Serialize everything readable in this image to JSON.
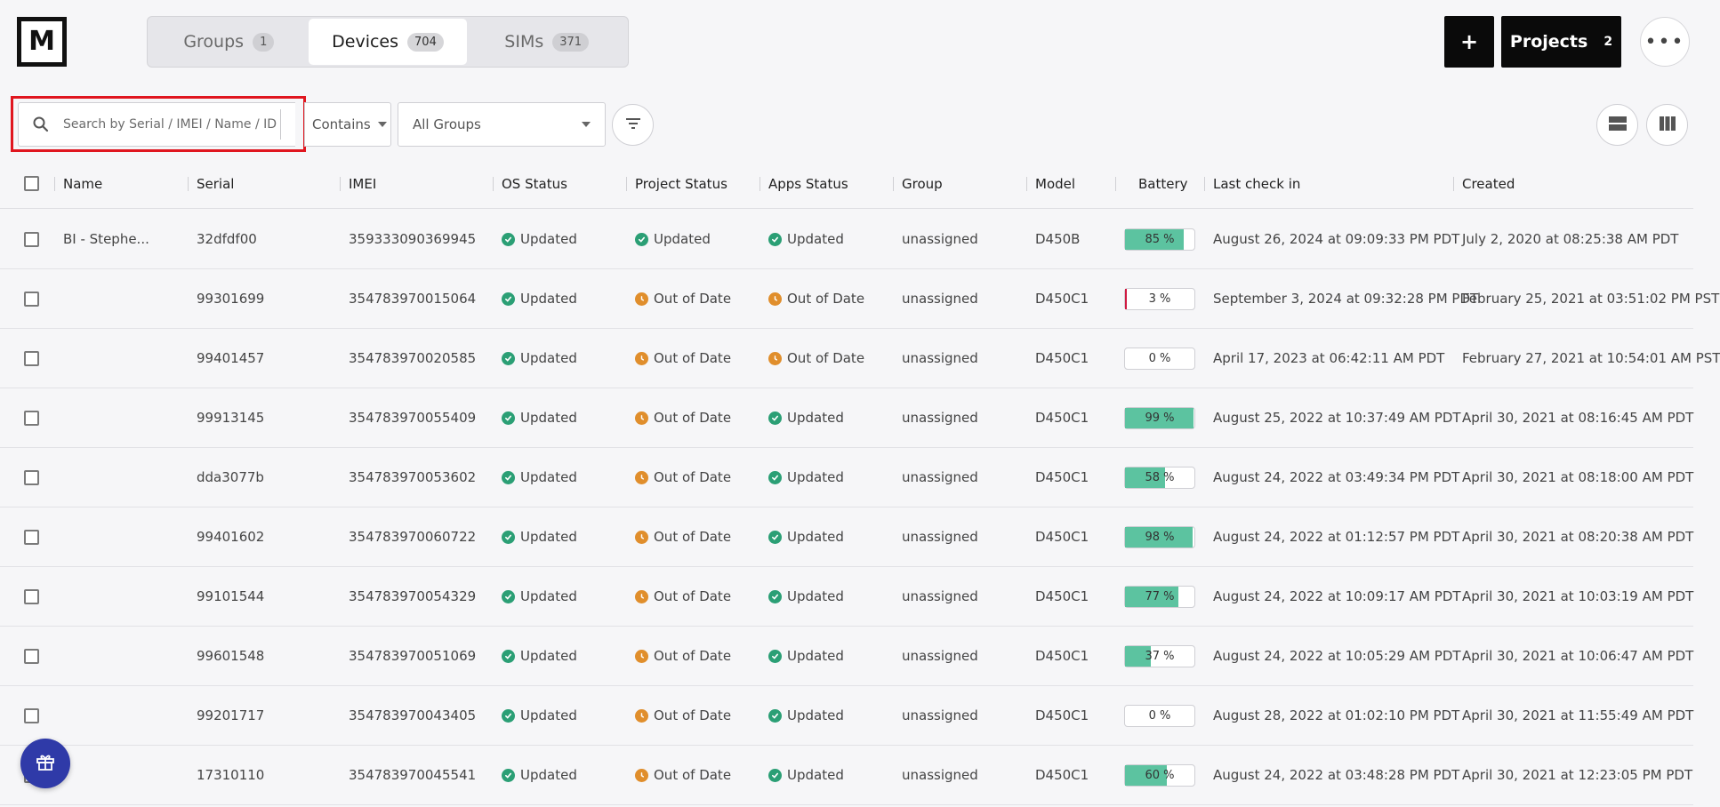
{
  "logo": {
    "letter": "M"
  },
  "tabs": [
    {
      "label": "Groups",
      "count": "1",
      "active": false
    },
    {
      "label": "Devices",
      "count": "704",
      "active": true
    },
    {
      "label": "SIMs",
      "count": "371",
      "active": false
    }
  ],
  "header": {
    "add_label": "+",
    "projects_label": "Projects",
    "projects_count": "2",
    "more_label": "•••"
  },
  "toolbar": {
    "search_placeholder": "Search by Serial / IMEI / Name / ID",
    "match_mode": "Contains",
    "group_filter": "All Groups"
  },
  "table": {
    "columns": {
      "name": "Name",
      "serial": "Serial",
      "imei": "IMEI",
      "os_status": "OS Status",
      "project_status": "Project Status",
      "apps_status": "Apps Status",
      "group": "Group",
      "model": "Model",
      "battery": "Battery",
      "last_check_in": "Last check in",
      "created": "Created"
    },
    "rows": [
      {
        "name": "BI - Stephe...",
        "serial": "32dfdf00",
        "imei": "359333090369945",
        "os": "Updated",
        "project": "Updated",
        "apps": "Updated",
        "group": "unassigned",
        "model": "D450B",
        "battery": 85,
        "battery_label": "85 %",
        "last_check_in": "August 26, 2024 at 09:09:33 PM PDT",
        "created": "July 2, 2020 at 08:25:38 AM PDT"
      },
      {
        "name": "",
        "serial": "99301699",
        "imei": "354783970015064",
        "os": "Updated",
        "project": "Out of Date",
        "apps": "Out of Date",
        "group": "unassigned",
        "model": "D450C1",
        "battery": 3,
        "battery_label": "3 %",
        "last_check_in": "September 3, 2024 at 09:32:28 PM PDT",
        "created": "February 25, 2021 at 03:51:02 PM PST"
      },
      {
        "name": "",
        "serial": "99401457",
        "imei": "354783970020585",
        "os": "Updated",
        "project": "Out of Date",
        "apps": "Out of Date",
        "group": "unassigned",
        "model": "D450C1",
        "battery": 0,
        "battery_label": "0 %",
        "last_check_in": "April 17, 2023 at 06:42:11 AM PDT",
        "created": "February 27, 2021 at 10:54:01 AM PST"
      },
      {
        "name": "",
        "serial": "99913145",
        "imei": "354783970055409",
        "os": "Updated",
        "project": "Out of Date",
        "apps": "Updated",
        "group": "unassigned",
        "model": "D450C1",
        "battery": 99,
        "battery_label": "99 %",
        "last_check_in": "August 25, 2022 at 10:37:49 AM PDT",
        "created": "April 30, 2021 at 08:16:45 AM PDT"
      },
      {
        "name": "",
        "serial": "dda3077b",
        "imei": "354783970053602",
        "os": "Updated",
        "project": "Out of Date",
        "apps": "Updated",
        "group": "unassigned",
        "model": "D450C1",
        "battery": 58,
        "battery_label": "58 %",
        "last_check_in": "August 24, 2022 at 03:49:34 PM PDT",
        "created": "April 30, 2021 at 08:18:00 AM PDT"
      },
      {
        "name": "",
        "serial": "99401602",
        "imei": "354783970060722",
        "os": "Updated",
        "project": "Out of Date",
        "apps": "Updated",
        "group": "unassigned",
        "model": "D450C1",
        "battery": 98,
        "battery_label": "98 %",
        "last_check_in": "August 24, 2022 at 01:12:57 PM PDT",
        "created": "April 30, 2021 at 08:20:38 AM PDT"
      },
      {
        "name": "",
        "serial": "99101544",
        "imei": "354783970054329",
        "os": "Updated",
        "project": "Out of Date",
        "apps": "Updated",
        "group": "unassigned",
        "model": "D450C1",
        "battery": 77,
        "battery_label": "77 %",
        "last_check_in": "August 24, 2022 at 10:09:17 AM PDT",
        "created": "April 30, 2021 at 10:03:19 AM PDT"
      },
      {
        "name": "",
        "serial": "99601548",
        "imei": "354783970051069",
        "os": "Updated",
        "project": "Out of Date",
        "apps": "Updated",
        "group": "unassigned",
        "model": "D450C1",
        "battery": 37,
        "battery_label": "37 %",
        "last_check_in": "August 24, 2022 at 10:05:29 AM PDT",
        "created": "April 30, 2021 at 10:06:47 AM PDT"
      },
      {
        "name": "",
        "serial": "99201717",
        "imei": "354783970043405",
        "os": "Updated",
        "project": "Out of Date",
        "apps": "Updated",
        "group": "unassigned",
        "model": "D450C1",
        "battery": 0,
        "battery_label": "0 %",
        "last_check_in": "August 28, 2022 at 01:02:10 PM PDT",
        "created": "April 30, 2021 at 11:55:49 AM PDT"
      },
      {
        "name": "",
        "serial": "17310110",
        "imei": "354783970045541",
        "os": "Updated",
        "project": "Out of Date",
        "apps": "Updated",
        "group": "unassigned",
        "model": "D450C1",
        "battery": 60,
        "battery_label": "60 %",
        "last_check_in": "August 24, 2022 at 03:48:28 PM PDT",
        "created": "April 30, 2021 at 12:23:05 PM PDT"
      }
    ]
  },
  "colors": {
    "status_ok": "#2b9f75",
    "status_warn": "#e08e2c",
    "battery_fill": "#5cc3a0",
    "battery_low": "#d01a42",
    "highlight": "#e0161f",
    "gift_button": "#2f3aa8"
  },
  "icons": {
    "search": "search-icon",
    "filter": "filter-icon",
    "list_view": "list-view-icon",
    "column_view": "column-view-icon",
    "gift": "gift-icon",
    "status_ok": "check-circle-icon",
    "status_warn": "clock-icon"
  }
}
